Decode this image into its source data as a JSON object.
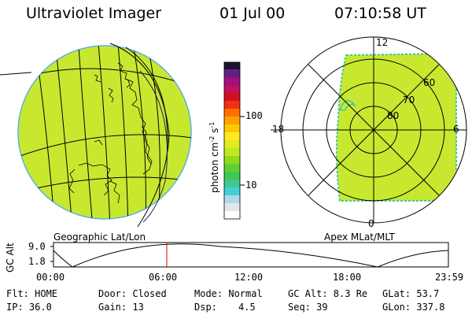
{
  "header": {
    "title": "Ultraviolet Imager",
    "date": "01 Jul 00",
    "time": "07:10:58 UT"
  },
  "globe": {
    "label": "Geographic Lat/Lon",
    "fill_color": "#c8e830"
  },
  "colorbar": {
    "unit": "photon cm",
    "unit_exp1": "-2",
    "unit_mid": "s",
    "unit_exp2": "-1",
    "tick_labels": [
      "100",
      "10"
    ]
  },
  "polar": {
    "label": "Apex MLat/MLT",
    "lat_labels": [
      "60",
      "70",
      "80"
    ],
    "mlt_labels": [
      "12",
      "18",
      "6",
      "0"
    ]
  },
  "alt_plot": {
    "ylabel": "GC Alt",
    "y_ticks": [
      "9.0",
      "1.8"
    ],
    "x_ticks": [
      "00:00",
      "06:00",
      "12:00",
      "18:00",
      "23:59"
    ],
    "current_marker_color": "#e00000"
  },
  "info": {
    "flt": "Flt: HOME",
    "ip": "IP: 36.0",
    "door": "Door: Closed",
    "gain": "Gain: 13",
    "mode": "Mode: Normal",
    "dsp_label": "Dsp:",
    "dsp_value": "4.5",
    "gc_alt": "GC Alt: 8.3 Re",
    "seq": "Seq: 39",
    "glat": "GLat:  53.7",
    "glon": "GLon: 337.8"
  }
}
